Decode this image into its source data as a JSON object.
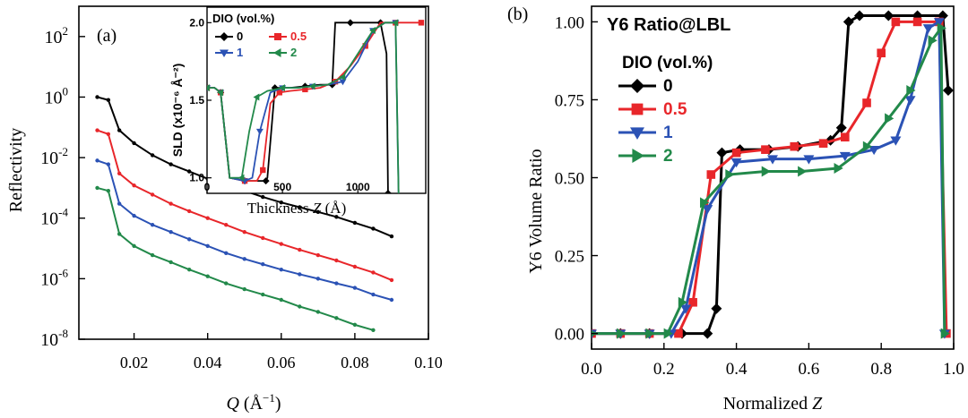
{
  "chart_data": [
    {
      "type": "line",
      "panel_label": "(a)",
      "xlabel": "Q (Å⁻¹)",
      "xlabel_main": "Q",
      "xlabel_unit": " (Å",
      "xlabel_sup": "−1",
      "xlabel_close": ")",
      "ylabel": "Reflectivity",
      "xlim": [
        0.005,
        0.1
      ],
      "ylim": [
        1e-08,
        1000.0
      ],
      "yscale": "log",
      "xticks": [
        0.02,
        0.04,
        0.06,
        0.08,
        0.1
      ],
      "xtick_labels": [
        "0.02",
        "0.04",
        "0.06",
        "0.08",
        "0.10"
      ],
      "yticks": [
        {
          "base": "10",
          "exp": "2",
          "value": 2
        },
        {
          "base": "10",
          "exp": "0",
          "value": 0
        },
        {
          "base": "10",
          "exp": "-2",
          "value": -2
        },
        {
          "base": "10",
          "exp": "-4",
          "value": -4
        },
        {
          "base": "10",
          "exp": "-6",
          "value": -6
        },
        {
          "base": "10",
          "exp": "-8",
          "value": -8
        }
      ],
      "series": [
        {
          "color": "#000000",
          "x": [
            0.01,
            0.013,
            0.016,
            0.02,
            0.025,
            0.03,
            0.035,
            0.04,
            0.045,
            0.05,
            0.055,
            0.06,
            0.065,
            0.07,
            0.075,
            0.08,
            0.085,
            0.09
          ],
          "y": [
            1,
            0.8,
            0.08,
            0.03,
            0.012,
            0.006,
            0.0035,
            0.002,
            0.0012,
            0.0008,
            0.0005,
            0.00033,
            0.00023,
            0.00016,
            0.00011,
            7e-05,
            4.5e-05,
            2.5e-05
          ]
        },
        {
          "color": "#e8262a",
          "x": [
            0.01,
            0.013,
            0.016,
            0.02,
            0.025,
            0.03,
            0.035,
            0.04,
            0.045,
            0.05,
            0.055,
            0.06,
            0.065,
            0.07,
            0.075,
            0.08,
            0.085,
            0.09
          ],
          "y": [
            0.08,
            0.06,
            0.003,
            0.0012,
            0.0006,
            0.0003,
            0.00017,
            0.0001,
            6e-05,
            3.5e-05,
            2.2e-05,
            1.4e-05,
            9e-06,
            6e-06,
            4e-06,
            2.5e-06,
            1.6e-06,
            9e-07
          ]
        },
        {
          "color": "#2b52b5",
          "x": [
            0.01,
            0.013,
            0.016,
            0.02,
            0.025,
            0.03,
            0.035,
            0.04,
            0.045,
            0.05,
            0.055,
            0.06,
            0.065,
            0.07,
            0.075,
            0.08,
            0.085,
            0.09
          ],
          "y": [
            0.008,
            0.006,
            0.0003,
            0.00012,
            6e-05,
            3.5e-05,
            2e-05,
            1.2e-05,
            7e-06,
            4.5e-06,
            3e-06,
            2e-06,
            1.4e-06,
            1e-06,
            7e-07,
            5e-07,
            3e-07,
            2e-07
          ]
        },
        {
          "color": "#22894a",
          "x": [
            0.01,
            0.013,
            0.016,
            0.02,
            0.025,
            0.03,
            0.035,
            0.04,
            0.045,
            0.05,
            0.055,
            0.06,
            0.065,
            0.07,
            0.075,
            0.08,
            0.085
          ],
          "y": [
            0.001,
            0.0008,
            3e-05,
            1.2e-05,
            6e-06,
            3.5e-06,
            2e-06,
            1.2e-06,
            7e-07,
            4.5e-07,
            3e-07,
            2e-07,
            1.2e-07,
            8e-08,
            5e-08,
            3e-08,
            2e-08
          ]
        }
      ],
      "inset": {
        "type": "line",
        "xlabel": "Thickness Z (Å)",
        "xlabel_main": "Thickness ",
        "xlabel_var": "Z",
        "xlabel_unit": " (Å)",
        "ylabel": "SLD (x10⁻⁶ Å⁻²)",
        "xlim": [
          0,
          1450
        ],
        "ylim": [
          0.9,
          2.1
        ],
        "xticks": [
          0,
          500,
          1000
        ],
        "yticks": [
          1.0,
          1.5,
          2.0
        ],
        "legend_title": "DIO (vol.%)",
        "legend": [
          {
            "label": "0",
            "color": "#000000",
            "marker": "diamond"
          },
          {
            "label": "0.5",
            "color": "#e8262a",
            "marker": "square"
          },
          {
            "label": "1",
            "color": "#2b52b5",
            "marker": "triangle-down"
          },
          {
            "label": "2",
            "color": "#22894a",
            "marker": "triangle-left"
          }
        ],
        "series": [
          {
            "name": "0",
            "color": "#000000",
            "x": [
              0,
              50,
              90,
              150,
              250,
              300,
              390,
              400,
              450,
              550,
              650,
              750,
              830,
              850,
              950,
              1050,
              1150,
              1190,
              1200,
              1220
            ],
            "y": [
              1.58,
              1.58,
              1.55,
              1.0,
              0.98,
              0.98,
              0.98,
              1.0,
              1.58,
              1.58,
              1.59,
              1.6,
              1.6,
              2.0,
              2.0,
              2.0,
              2.0,
              1.8,
              0.9,
              0.9
            ]
          },
          {
            "name": "0.5",
            "color": "#e8262a",
            "x": [
              0,
              50,
              90,
              150,
              250,
              330,
              370,
              420,
              480,
              550,
              650,
              750,
              850,
              950,
              1050,
              1150,
              1250,
              1350,
              1420
            ],
            "y": [
              1.58,
              1.58,
              1.55,
              1.0,
              0.98,
              0.98,
              1.05,
              1.48,
              1.55,
              1.56,
              1.57,
              1.58,
              1.62,
              1.72,
              1.85,
              2.0,
              2.0,
              2.0,
              2.0
            ]
          },
          {
            "name": "1",
            "color": "#2b52b5",
            "x": [
              0,
              50,
              90,
              150,
              250,
              300,
              350,
              420,
              500,
              600,
              700,
              800,
              900,
              1000,
              1100,
              1180,
              1250,
              1270
            ],
            "y": [
              1.58,
              1.58,
              1.55,
              1.0,
              0.98,
              1.0,
              1.3,
              1.55,
              1.58,
              1.58,
              1.59,
              1.6,
              1.62,
              1.75,
              1.95,
              2.0,
              2.0,
              0.9
            ]
          },
          {
            "name": "2",
            "color": "#22894a",
            "x": [
              0,
              50,
              90,
              150,
              230,
              280,
              330,
              400,
              500,
              600,
              700,
              800,
              900,
              1000,
              1100,
              1180,
              1250,
              1270
            ],
            "y": [
              1.58,
              1.58,
              1.55,
              1.0,
              1.0,
              1.3,
              1.52,
              1.56,
              1.58,
              1.58,
              1.59,
              1.6,
              1.65,
              1.8,
              1.95,
              2.0,
              2.0,
              0.9
            ]
          }
        ]
      }
    },
    {
      "type": "line",
      "panel_label": "(b)",
      "title": "Y6 Ratio@LBL",
      "xlabel": "Normalized Z",
      "xlabel_main": "Normalized ",
      "xlabel_var": "Z",
      "ylabel": "Y6 Volume Ratio",
      "xlim": [
        0.0,
        1.0
      ],
      "ylim": [
        -0.05,
        1.05
      ],
      "xticks": [
        0.0,
        0.2,
        0.4,
        0.6,
        0.8,
        1.0
      ],
      "xtick_labels": [
        "0.0",
        "0.2",
        "0.4",
        "0.6",
        "0.8",
        "1.0"
      ],
      "yticks": [
        0.0,
        0.25,
        0.5,
        0.75,
        1.0
      ],
      "ytick_labels": [
        "0.00",
        "0.25",
        "0.50",
        "0.75",
        "1.00"
      ],
      "legend_title": "DIO (vol.%)",
      "legend": [
        {
          "label": "0",
          "color": "#000000",
          "marker": "diamond"
        },
        {
          "label": "0.5",
          "color": "#e8262a",
          "marker": "square"
        },
        {
          "label": "1",
          "color": "#2b52b5",
          "marker": "triangle-down"
        },
        {
          "label": "2",
          "color": "#22894a",
          "marker": "triangle-right"
        }
      ],
      "series": [
        {
          "name": "0",
          "color": "#000000",
          "x": [
            0.0,
            0.08,
            0.16,
            0.25,
            0.32,
            0.345,
            0.36,
            0.41,
            0.49,
            0.57,
            0.66,
            0.69,
            0.71,
            0.74,
            0.82,
            0.9,
            0.97,
            0.985
          ],
          "y": [
            0.0,
            0.0,
            0.0,
            0.0,
            0.0,
            0.08,
            0.58,
            0.59,
            0.59,
            0.6,
            0.62,
            0.66,
            1.0,
            1.02,
            1.02,
            1.02,
            1.02,
            0.78
          ]
        },
        {
          "name": "0.5",
          "color": "#e8262a",
          "x": [
            0.0,
            0.08,
            0.16,
            0.24,
            0.28,
            0.33,
            0.4,
            0.48,
            0.56,
            0.64,
            0.7,
            0.76,
            0.8,
            0.84,
            0.9,
            0.96,
            0.98
          ],
          "y": [
            0.0,
            0.0,
            0.0,
            0.0,
            0.1,
            0.51,
            0.58,
            0.59,
            0.6,
            0.61,
            0.63,
            0.74,
            0.9,
            1.0,
            1.0,
            1.0,
            0.0
          ]
        },
        {
          "name": "1",
          "color": "#2b52b5",
          "x": [
            0.0,
            0.08,
            0.16,
            0.22,
            0.26,
            0.32,
            0.4,
            0.5,
            0.6,
            0.7,
            0.78,
            0.84,
            0.88,
            0.93,
            0.96,
            0.975
          ],
          "y": [
            0.0,
            0.0,
            0.0,
            0.0,
            0.08,
            0.4,
            0.55,
            0.56,
            0.56,
            0.57,
            0.59,
            0.62,
            0.75,
            0.98,
            1.0,
            0.0
          ]
        },
        {
          "name": "2",
          "color": "#22894a",
          "x": [
            0.0,
            0.08,
            0.16,
            0.21,
            0.25,
            0.31,
            0.38,
            0.48,
            0.58,
            0.68,
            0.76,
            0.82,
            0.88,
            0.94,
            0.965,
            0.975
          ],
          "y": [
            0.0,
            0.0,
            0.0,
            0.0,
            0.1,
            0.42,
            0.51,
            0.52,
            0.52,
            0.53,
            0.6,
            0.69,
            0.78,
            0.94,
            0.98,
            0.0
          ]
        }
      ]
    }
  ]
}
